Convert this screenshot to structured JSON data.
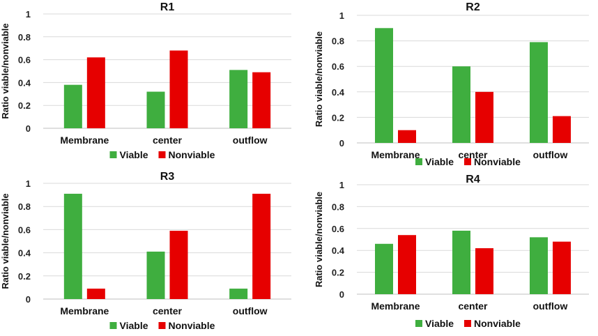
{
  "chart_data": [
    {
      "type": "bar",
      "title": "R1",
      "ylabel": "Ratio viable/nonviable",
      "xlabel": "",
      "categories": [
        "Membrane",
        "center",
        "outflow"
      ],
      "ylim": [
        0,
        1
      ],
      "yticks": [
        "0",
        "0.2",
        "0.4",
        "0.6",
        "0.8",
        "1"
      ],
      "series": [
        {
          "name": "Viable",
          "color": "#3fae3f",
          "values": [
            0.38,
            0.32,
            0.51
          ]
        },
        {
          "name": "Nonviable",
          "color": "#e60000",
          "values": [
            0.62,
            0.68,
            0.49
          ]
        }
      ],
      "legend": "bottom"
    },
    {
      "type": "bar",
      "title": "R2",
      "ylabel": "Ratio viable/nonviable",
      "xlabel": "",
      "categories": [
        "Membrane",
        "center",
        "outflow"
      ],
      "ylim": [
        0,
        1
      ],
      "yticks": [
        "0",
        "0.2",
        "0.4",
        "0.6",
        "0.8",
        "1"
      ],
      "series": [
        {
          "name": "Viable",
          "color": "#3fae3f",
          "values": [
            0.9,
            0.6,
            0.79
          ]
        },
        {
          "name": "Nonviable",
          "color": "#e60000",
          "values": [
            0.1,
            0.4,
            0.21
          ]
        }
      ],
      "legend": "bottom"
    },
    {
      "type": "bar",
      "title": "R3",
      "ylabel": "Ratio viable/nonviable",
      "xlabel": "",
      "categories": [
        "Membrane",
        "center",
        "outflow"
      ],
      "ylim": [
        0,
        1
      ],
      "yticks": [
        "0",
        "0.2",
        "0.4",
        "0.6",
        "0.8",
        "1"
      ],
      "series": [
        {
          "name": "Viable",
          "color": "#3fae3f",
          "values": [
            0.91,
            0.41,
            0.09
          ]
        },
        {
          "name": "Nonviable",
          "color": "#e60000",
          "values": [
            0.09,
            0.59,
            0.91
          ]
        }
      ],
      "legend": "bottom"
    },
    {
      "type": "bar",
      "title": "R4",
      "ylabel": "Ratio viable/nonviable",
      "xlabel": "",
      "categories": [
        "Membrane",
        "center",
        "outflow"
      ],
      "ylim": [
        0,
        1
      ],
      "yticks": [
        "0",
        "0.2",
        "0.4",
        "0.6",
        "0.8",
        "1"
      ],
      "series": [
        {
          "name": "Viable",
          "color": "#3fae3f",
          "values": [
            0.46,
            0.58,
            0.52
          ]
        },
        {
          "name": "Nonviable",
          "color": "#e60000",
          "values": [
            0.54,
            0.42,
            0.48
          ]
        }
      ],
      "legend": "bottom"
    }
  ]
}
